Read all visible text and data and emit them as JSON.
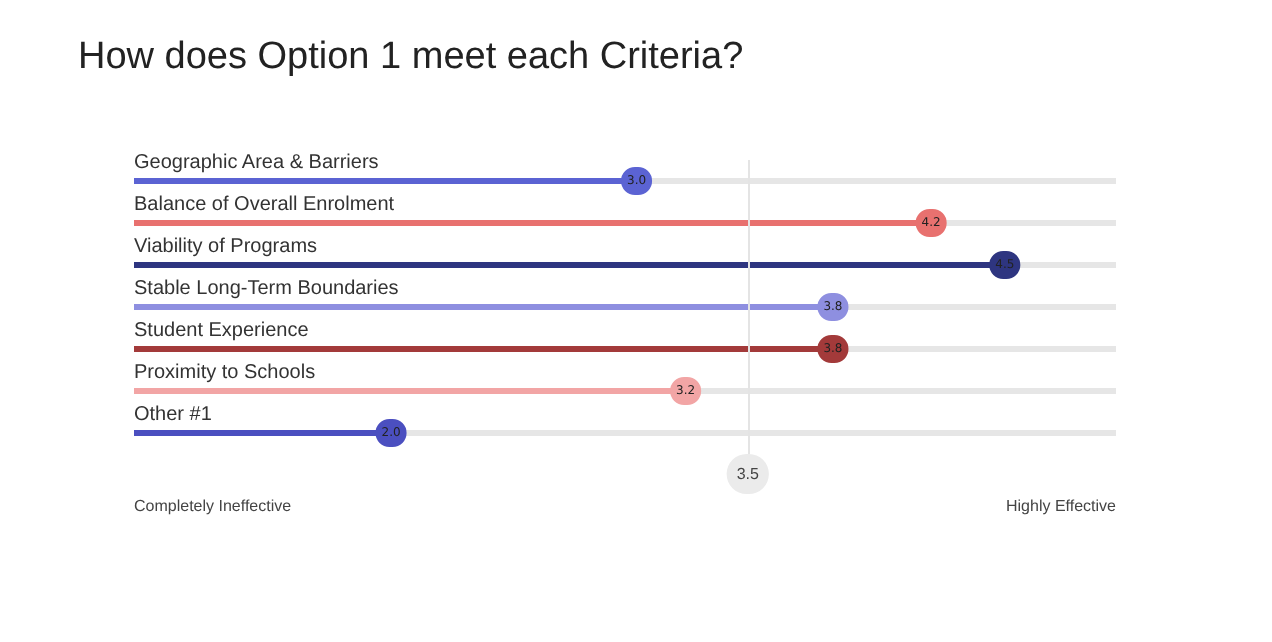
{
  "chart_data": {
    "type": "bar",
    "orientation": "horizontal",
    "title": "How does Option 1 meet each Criteria?",
    "categories": [
      "Geographic Area & Barriers",
      "Balance of Overall Enrolment",
      "Viability of Programs",
      "Stable Long-Term Boundaries",
      "Student Experience",
      "Proximity to Schools",
      "Other #1"
    ],
    "values": [
      3.0,
      4.2,
      4.5,
      3.8,
      3.8,
      3.2,
      2.0
    ],
    "value_labels": [
      "3.0",
      "4.2",
      "4.5",
      "3.8",
      "3.8",
      "3.2",
      "2.0"
    ],
    "colors": [
      "#5b63d3",
      "#e8716f",
      "#2e3580",
      "#8e8fe0",
      "#a33a3a",
      "#f2a5a5",
      "#4b4fc0"
    ],
    "xlim": [
      1,
      5
    ],
    "annotations": [
      "Completely Ineffective",
      "Highly Effective"
    ],
    "ref_lines": [
      {
        "axis": "x",
        "value": 3.5,
        "label": "3.5",
        "color": "#e4e4e4"
      }
    ]
  }
}
